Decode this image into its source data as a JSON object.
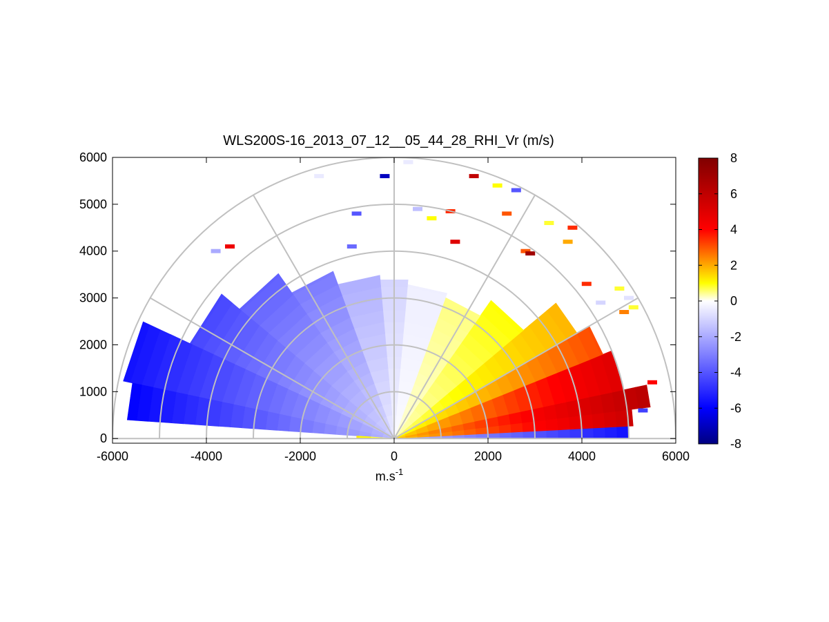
{
  "chart_data": {
    "type": "heatmap",
    "subtype": "polar-rhi",
    "title": "WLS200S-16_2013_07_12__05_44_28_RHI_Vr (m/s)",
    "xlabel": "m.s",
    "xlabel_sup": "-1",
    "ylabel": "",
    "xlim": [
      -6000,
      6000
    ],
    "ylim": [
      -100,
      6000
    ],
    "x_ticks": [
      -6000,
      -4000,
      -2000,
      0,
      2000,
      4000,
      6000
    ],
    "y_ticks": [
      0,
      1000,
      2000,
      3000,
      4000,
      5000,
      6000
    ],
    "x_tick_labels": [
      "-6000",
      "-4000",
      "-2000",
      "0",
      "2000",
      "4000",
      "6000"
    ],
    "y_tick_labels": [
      "0",
      "1000",
      "2000",
      "3000",
      "4000",
      "5000",
      "6000"
    ],
    "polar_grid": {
      "ring_ranges_m": [
        1000,
        2000,
        3000,
        4000,
        5000,
        6000
      ],
      "spoke_angles_deg": [
        0,
        30,
        60,
        90,
        120,
        150,
        180
      ]
    },
    "colorbar": {
      "range": [
        -8,
        8
      ],
      "ticks": [
        -8,
        -6,
        -4,
        -2,
        0,
        2,
        4,
        6,
        8
      ],
      "tick_labels": [
        "-8",
        "-6",
        "-4",
        "-2",
        "0",
        "2",
        "4",
        "6",
        "8"
      ],
      "colors": [
        "#000080",
        "#0000ff",
        "#ffffff",
        "#ffff00",
        "#ff0000",
        "#800000"
      ]
    },
    "sectors": [
      {
        "az_from_deg": 0,
        "az_to_deg": 3,
        "max_range_m": 5000,
        "value": -4.5
      },
      {
        "az_from_deg": 3,
        "az_to_deg": 7,
        "max_range_m": 5100,
        "value": 4.5
      },
      {
        "az_from_deg": 7,
        "az_to_deg": 12,
        "max_range_m": 5500,
        "value": 5.0
      },
      {
        "az_from_deg": 12,
        "az_to_deg": 22,
        "max_range_m": 5000,
        "value": 4.0
      },
      {
        "az_from_deg": 22,
        "az_to_deg": 30,
        "max_range_m": 4800,
        "value": 2.5
      },
      {
        "az_from_deg": 30,
        "az_to_deg": 40,
        "max_range_m": 4500,
        "value": 1.5
      },
      {
        "az_from_deg": 40,
        "az_to_deg": 55,
        "max_range_m": 3600,
        "value": 0.8
      },
      {
        "az_from_deg": 55,
        "az_to_deg": 70,
        "max_range_m": 3200,
        "value": 0.4
      },
      {
        "az_from_deg": 70,
        "az_to_deg": 85,
        "max_range_m": 3300,
        "value": -0.3
      },
      {
        "az_from_deg": 85,
        "az_to_deg": 95,
        "max_range_m": 3400,
        "value": -0.8
      },
      {
        "az_from_deg": 95,
        "az_to_deg": 110,
        "max_range_m": 3500,
        "value": -1.5
      },
      {
        "az_from_deg": 110,
        "az_to_deg": 125,
        "max_range_m": 3800,
        "value": -2.5
      },
      {
        "az_from_deg": 125,
        "az_to_deg": 140,
        "max_range_m": 4300,
        "value": -3.0
      },
      {
        "az_from_deg": 140,
        "az_to_deg": 155,
        "max_range_m": 4800,
        "value": -3.5
      },
      {
        "az_from_deg": 155,
        "az_to_deg": 168,
        "max_range_m": 5900,
        "value": -4.5
      },
      {
        "az_from_deg": 168,
        "az_to_deg": 176,
        "max_range_m": 5700,
        "value": -4.8
      },
      {
        "az_from_deg": 176,
        "az_to_deg": 180,
        "max_range_m": 800,
        "value": 1.0
      }
    ],
    "scattered_cells": [
      {
        "x": -1600,
        "y": 5600,
        "value": -0.5
      },
      {
        "x": -200,
        "y": 5600,
        "value": -7.0
      },
      {
        "x": 300,
        "y": 5900,
        "value": -0.5
      },
      {
        "x": 1700,
        "y": 5600,
        "value": 6.0
      },
      {
        "x": 2200,
        "y": 5400,
        "value": 1.0
      },
      {
        "x": 2600,
        "y": 5300,
        "value": -4.0
      },
      {
        "x": 2400,
        "y": 4800,
        "value": 3.0
      },
      {
        "x": 1200,
        "y": 4850,
        "value": 3.5
      },
      {
        "x": 500,
        "y": 4900,
        "value": -1.5
      },
      {
        "x": 800,
        "y": 4700,
        "value": 1.0
      },
      {
        "x": -800,
        "y": 4800,
        "value": -4.0
      },
      {
        "x": -3800,
        "y": 4000,
        "value": -2.0
      },
      {
        "x": -3500,
        "y": 4100,
        "value": 4.5
      },
      {
        "x": -900,
        "y": 4100,
        "value": -3.5
      },
      {
        "x": 1300,
        "y": 4200,
        "value": 5.0
      },
      {
        "x": 2800,
        "y": 4000,
        "value": 3.0
      },
      {
        "x": 2900,
        "y": 3950,
        "value": 7.0
      },
      {
        "x": 3700,
        "y": 4200,
        "value": 2.0
      },
      {
        "x": 3800,
        "y": 4500,
        "value": 3.5
      },
      {
        "x": 3300,
        "y": 4600,
        "value": 0.8
      },
      {
        "x": 4100,
        "y": 3300,
        "value": 3.5
      },
      {
        "x": 4400,
        "y": 2900,
        "value": -1.0
      },
      {
        "x": 4800,
        "y": 3200,
        "value": 0.8
      },
      {
        "x": 5000,
        "y": 3000,
        "value": -0.7
      },
      {
        "x": 5100,
        "y": 2800,
        "value": 0.8
      },
      {
        "x": 4900,
        "y": 2700,
        "value": 2.5
      },
      {
        "x": 5500,
        "y": 1200,
        "value": 4.0
      },
      {
        "x": 5300,
        "y": 600,
        "value": -4.5
      }
    ]
  }
}
